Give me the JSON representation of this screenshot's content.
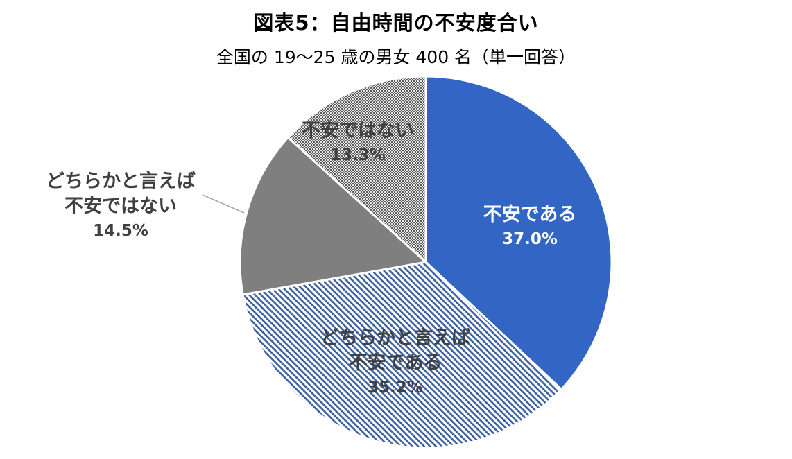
{
  "chart_data": {
    "type": "pie",
    "title": "図表5：自由時間の不安度合い",
    "subtitle": "全国の 19～25 歳の男女 400 名（単一回答）",
    "start_angle_deg": 0,
    "direction": "clockwise",
    "slices": [
      {
        "label_lines": [
          "不安である"
        ],
        "value": 37.0,
        "value_label": "37.0%",
        "color": "#3366C4",
        "fill": "solid",
        "text_color": "#ffffff"
      },
      {
        "label_lines": [
          "どちらかと言えば",
          "不安である"
        ],
        "value": 35.2,
        "value_label": "35.2%",
        "color": "#3A5F9E",
        "fill": "diagonal-hatch",
        "text_color": "#404040"
      },
      {
        "label_lines": [
          "どちらかと言えば",
          "不安ではない"
        ],
        "value": 14.5,
        "value_label": "14.5%",
        "color": "#7F7F7F",
        "fill": "solid",
        "text_color": "#404040",
        "label_position": "outside-left"
      },
      {
        "label_lines": [
          "不安ではない"
        ],
        "value": 13.3,
        "value_label": "13.3%",
        "color": "#5A5A5A",
        "fill": "checker",
        "text_color": "#404040"
      }
    ],
    "legend": "none"
  }
}
